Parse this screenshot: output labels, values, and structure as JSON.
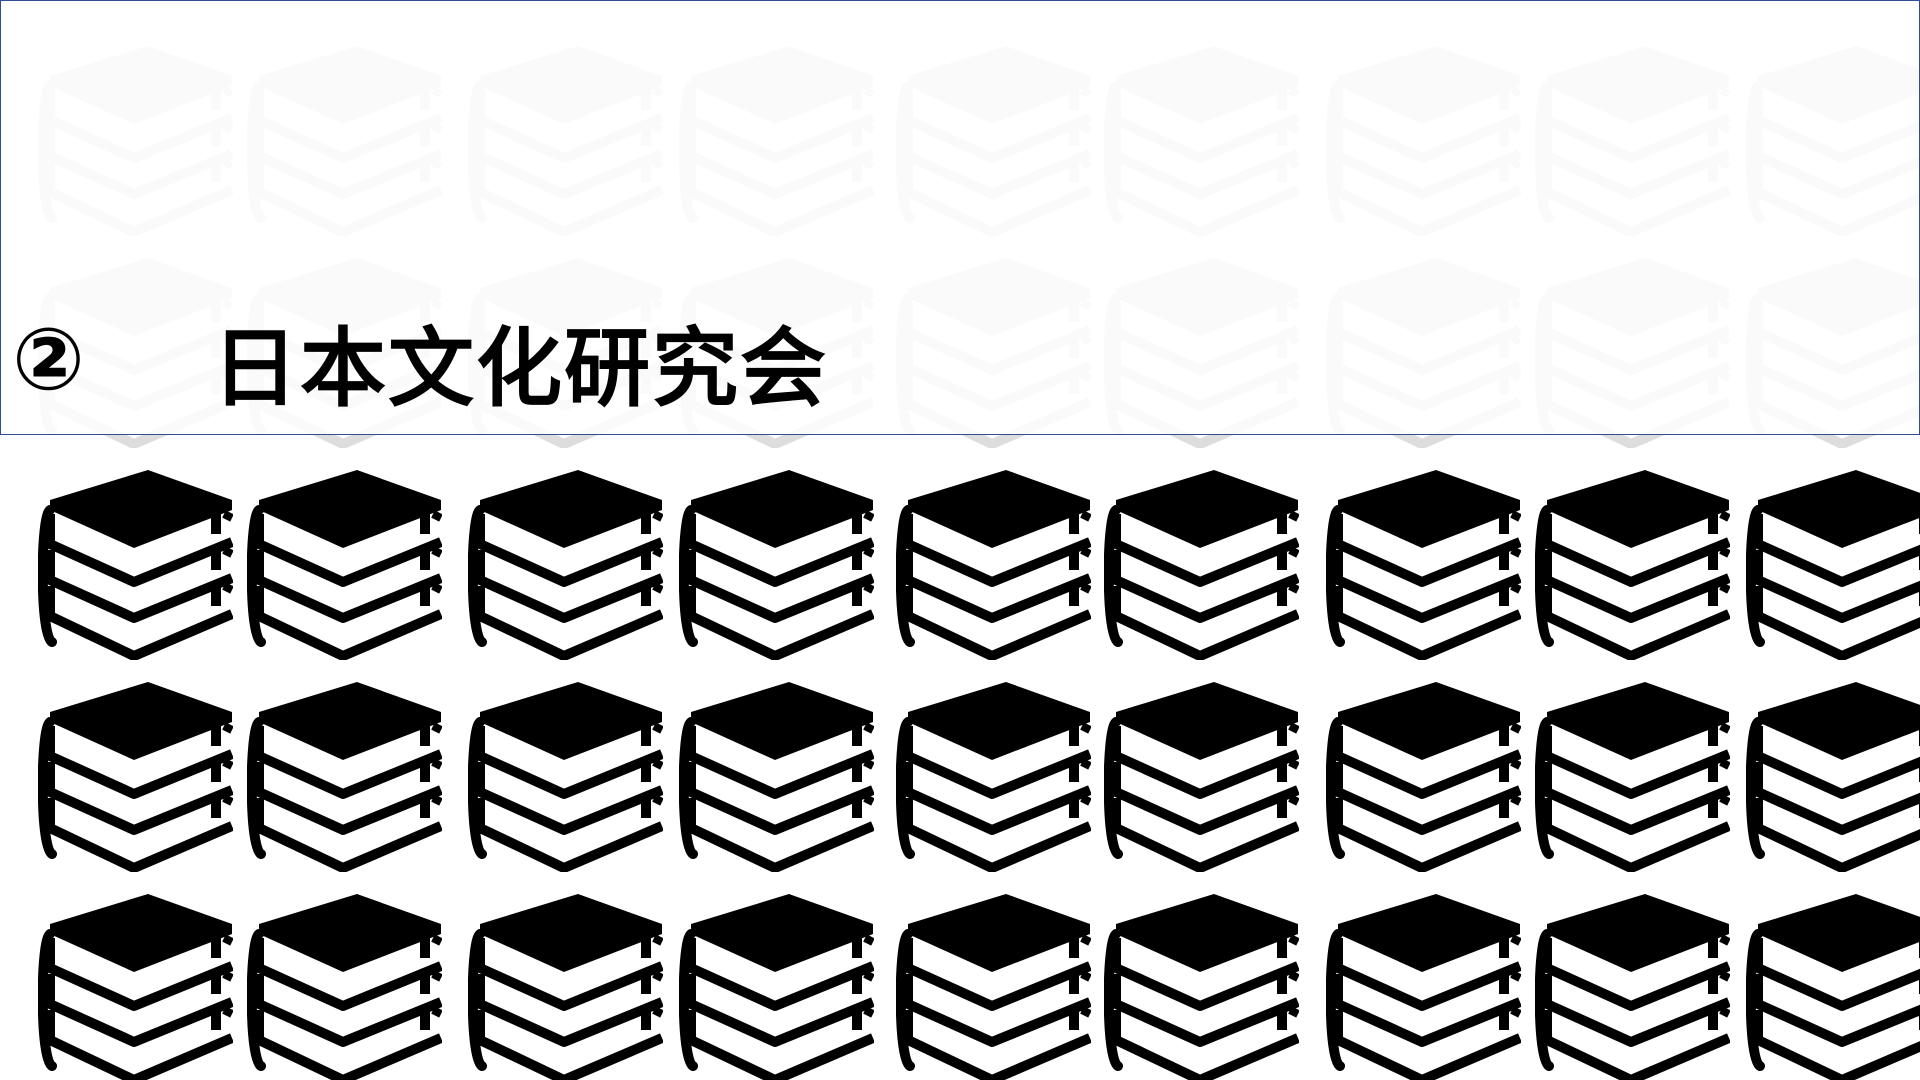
{
  "slide": {
    "number_label": "②",
    "title": "日本文化研究会"
  },
  "pattern": {
    "icon": "books-stack-icon",
    "rows": 5,
    "columns": 9,
    "dim_rows": 2,
    "colors": {
      "icon": "#000000",
      "icon_dimmed": "#dddddd",
      "background": "#ffffff",
      "header_border": "#2f4f8f"
    }
  }
}
